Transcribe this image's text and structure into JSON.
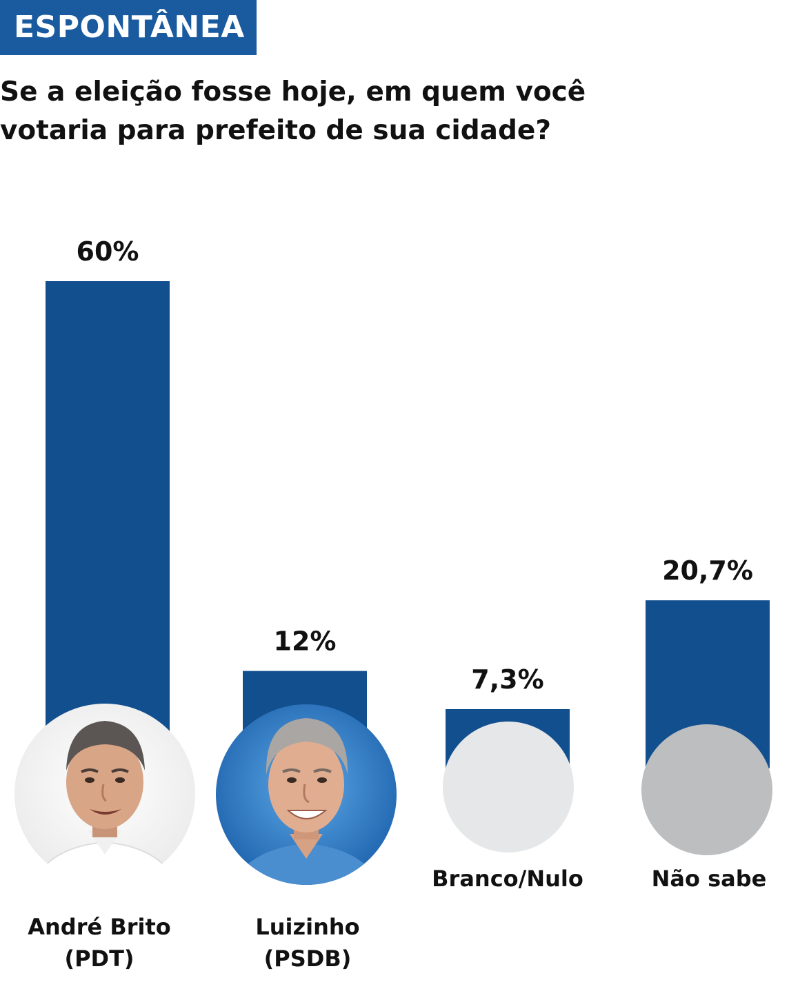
{
  "tag": "ESPONTÂNEA",
  "question_lines": [
    "Se a eleição fosse hoje, em quem você",
    "votaria para prefeito de sua cidade?"
  ],
  "colors": {
    "bar": "#124f8f",
    "tag_background": "#1a5a9e",
    "branco_nulo_circle": "#e6e7e8",
    "nao_sabe_circle": "#bdbec0"
  },
  "chart_data": {
    "type": "bar",
    "categories": [
      "André Brito (PDT)",
      "Luizinho (PSDB)",
      "Branco/Nulo",
      "Não sabe"
    ],
    "values": [
      60,
      12,
      7.3,
      20.7
    ],
    "value_labels": [
      "60%",
      "12%",
      "7,3%",
      "20,7%"
    ],
    "ylim": [
      0,
      60
    ],
    "grid": false,
    "legend": "none"
  },
  "labels": {
    "andre_line1": "André Brito",
    "andre_line2": "(PDT)",
    "luizinho_line1": "Luizinho",
    "luizinho_line2": "(PSDB)",
    "branco_nulo": "Branco/Nulo",
    "nao_sabe": "Não sabe"
  },
  "icons": [
    "andre-brito-photo-icon",
    "luizinho-photo-icon",
    "branco-nulo-circle-icon",
    "nao-sabe-circle-icon"
  ]
}
